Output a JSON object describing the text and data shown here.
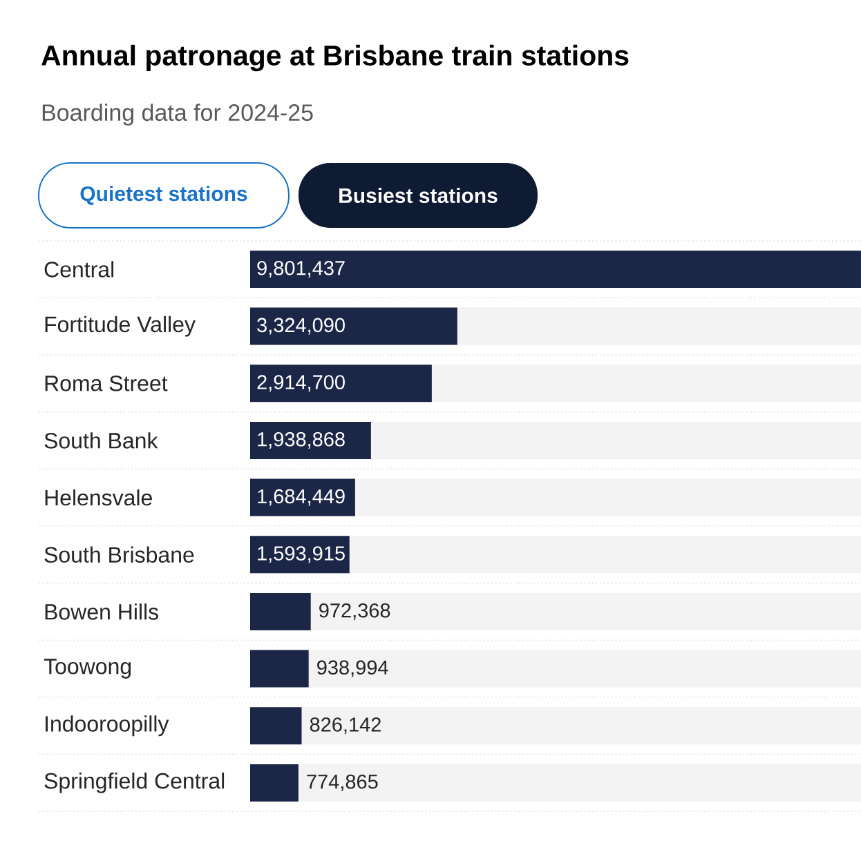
{
  "chart_data": {
    "type": "bar",
    "orientation": "horizontal",
    "title": "Annual patronage at Brisbane train stations",
    "subtitle": "Boarding data for 2024-25",
    "annotations": [
      "Quietest stations",
      "Busiest stations"
    ],
    "categories": [
      "Central",
      "Fortitude Valley",
      "Roma Street",
      "South Bank",
      "Helensvale",
      "South Brisbane",
      "Bowen Hills",
      "Toowong",
      "Indooroopilly",
      "Springfield Central"
    ],
    "values": [
      9801437,
      3324090,
      2914700,
      1938868,
      1684449,
      1593915,
      972368,
      938994,
      826142,
      774865
    ],
    "value_labels": [
      "9,801,437",
      "3,324,090",
      "2,914,700",
      "1,938,868",
      "1,684,449",
      "1,593,915",
      "972,368",
      "938,994",
      "826,142",
      "774,865"
    ],
    "color": "#1c2747"
  }
}
